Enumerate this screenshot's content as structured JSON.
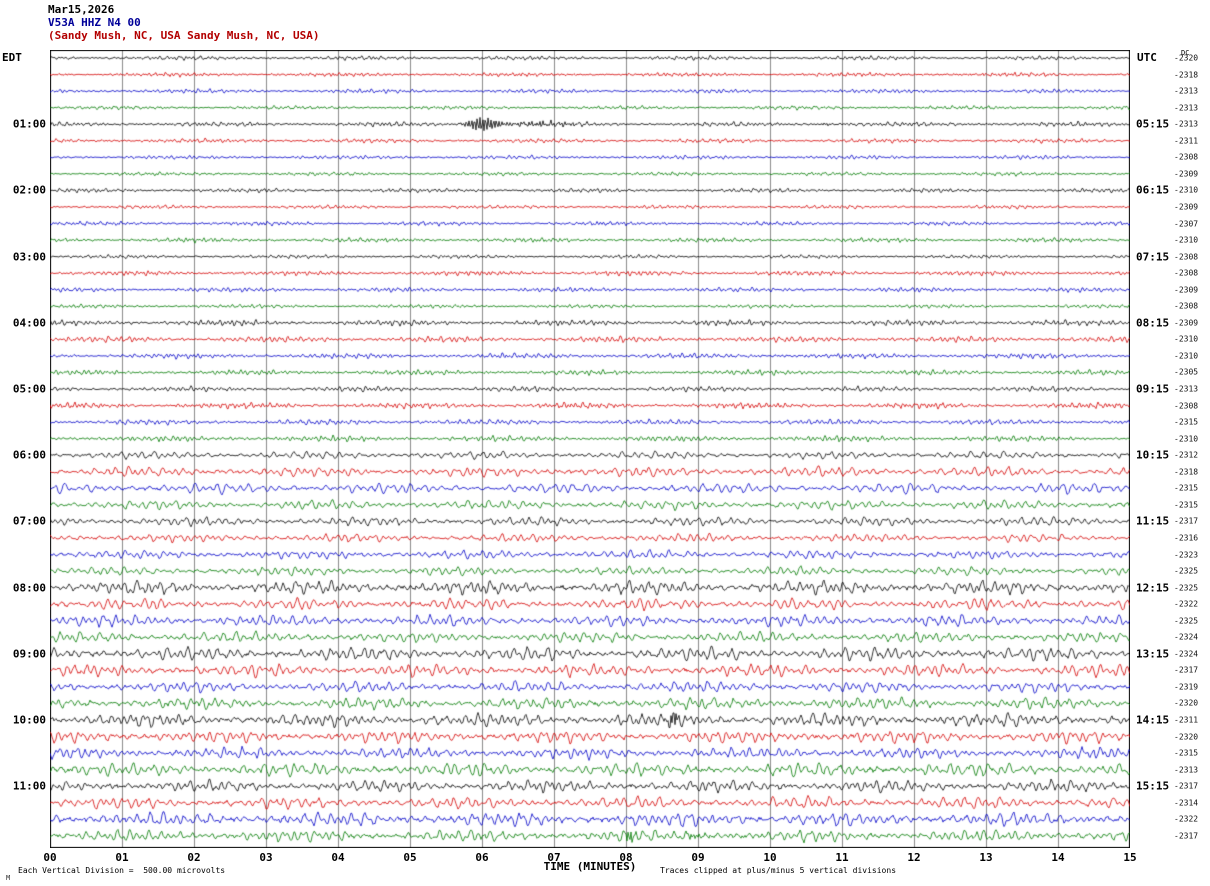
{
  "title": {
    "line1": "Mar15,2026",
    "line2": "V53A HHZ N4 00",
    "line3": "(Sandy Mush, NC, USA Sandy Mush, NC, USA)"
  },
  "header": {
    "left_axis": "EDT",
    "right_axis": "UTC",
    "right_sub": "DC"
  },
  "x_axis": {
    "label": "TIME (MINUTES)",
    "ticks": [
      "00",
      "01",
      "02",
      "03",
      "04",
      "05",
      "06",
      "07",
      "08",
      "09",
      "10",
      "11",
      "12",
      "13",
      "14",
      "15"
    ]
  },
  "footer": {
    "scale_note": "Each Vertical Division =  500.00 microvolts",
    "clip_note": "Traces clipped at plus/minus 5 vertical divisions",
    "corner_mark": "M"
  },
  "colors": {
    "black": "#000000",
    "red": "#d40000",
    "blue": "#0000c8",
    "green": "#007a00",
    "grid": "#8a8a8a",
    "border": "#000000",
    "title_line2": "#000099",
    "title_line3": "#b30000"
  },
  "chart_data": {
    "type": "line",
    "subtype": "helicorder-seismogram",
    "date": "Mar15,2026",
    "station": "V53A HHZ N4 00",
    "location": "Sandy Mush, NC, USA",
    "minutes_per_row": 15,
    "x_range": [
      0,
      15
    ],
    "rows": 48,
    "trace_color_cycle": [
      "black",
      "red",
      "blue",
      "green"
    ],
    "left_labels": [
      {
        "row": 4,
        "label": "01:00"
      },
      {
        "row": 8,
        "label": "02:00"
      },
      {
        "row": 12,
        "label": "03:00"
      },
      {
        "row": 16,
        "label": "04:00"
      },
      {
        "row": 20,
        "label": "05:00"
      },
      {
        "row": 24,
        "label": "06:00"
      },
      {
        "row": 28,
        "label": "07:00"
      },
      {
        "row": 32,
        "label": "08:00"
      },
      {
        "row": 36,
        "label": "09:00"
      },
      {
        "row": 40,
        "label": "10:00"
      },
      {
        "row": 44,
        "label": "11:00"
      }
    ],
    "right_labels": [
      {
        "row": 4,
        "label": "05:15"
      },
      {
        "row": 8,
        "label": "06:15"
      },
      {
        "row": 12,
        "label": "07:15"
      },
      {
        "row": 16,
        "label": "08:15"
      },
      {
        "row": 20,
        "label": "09:15"
      },
      {
        "row": 24,
        "label": "10:15"
      },
      {
        "row": 28,
        "label": "11:15"
      },
      {
        "row": 32,
        "label": "12:15"
      },
      {
        "row": 36,
        "label": "13:15"
      },
      {
        "row": 40,
        "label": "14:15"
      },
      {
        "row": 44,
        "label": "15:15"
      }
    ],
    "dc_offsets": [
      -2320,
      -2318,
      -2313,
      -2313,
      -2313,
      -2311,
      -2308,
      -2309,
      -2310,
      -2309,
      -2307,
      -2310,
      -2308,
      -2308,
      -2309,
      -2308,
      -2309,
      -2310,
      -2310,
      -2305,
      -2313,
      -2308,
      -2315,
      -2310,
      -2312,
      -2318,
      -2315,
      -2315,
      -2317,
      -2316,
      -2323,
      -2325,
      -2325,
      -2322,
      -2325,
      -2324,
      -2324,
      -2317,
      -2319,
      -2320,
      -2311,
      -2320,
      -2315,
      -2313,
      -2317,
      -2314,
      -2322,
      -2317
    ],
    "events": [
      {
        "row": 4,
        "minute": 6.0,
        "width_min": 0.22,
        "amplitude": 6.5,
        "note": "seismic event burst on 01:00 EDT trace"
      },
      {
        "row": 4,
        "minute": 6.8,
        "width_min": 0.55,
        "amplitude": 1.8,
        "note": "event coda"
      },
      {
        "row": 4,
        "minute": 10.8,
        "width_min": 0.06,
        "amplitude": 1.6,
        "note": "small blip"
      },
      {
        "row": 40,
        "minute": 8.65,
        "width_min": 0.08,
        "amplitude": 6.5,
        "note": "sharp spike on 10:00 EDT trace"
      },
      {
        "row": 47,
        "minute": 8.05,
        "width_min": 0.06,
        "amplitude": 5.5,
        "note": "spike on final green trace"
      },
      {
        "row": 47,
        "minute": 8.95,
        "width_min": 0.2,
        "amplitude": 2.2,
        "note": "small burst on final green trace"
      }
    ],
    "noise_profile": [
      {
        "rows": [
          0,
          15
        ],
        "relative_amplitude": 0.8,
        "character": "quiet high-frequency background"
      },
      {
        "rows": [
          16,
          23
        ],
        "relative_amplitude": 1.1,
        "character": "slightly elevated background"
      },
      {
        "rows": [
          24,
          31
        ],
        "relative_amplitude": 1.7,
        "character": "moderate oscillations"
      },
      {
        "rows": [
          32,
          47
        ],
        "relative_amplitude": 2.3,
        "character": "strong low-frequency microseism"
      }
    ]
  }
}
